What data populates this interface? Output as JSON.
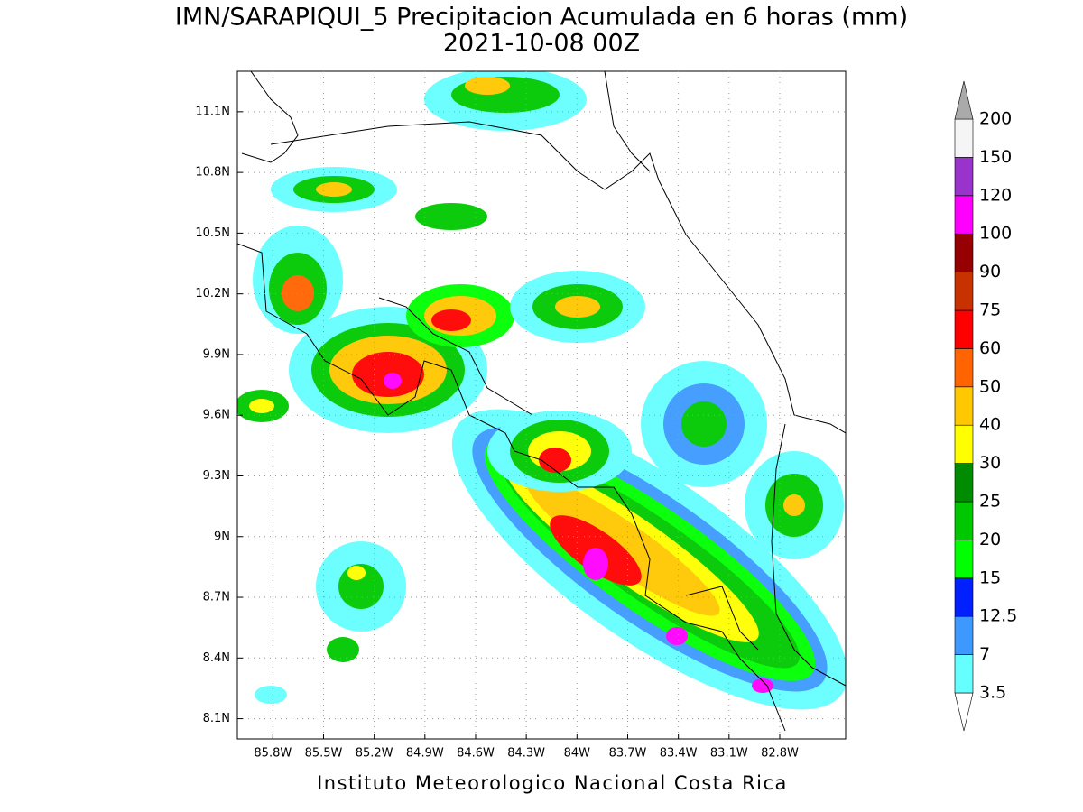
{
  "title": [
    "IMN/SARAPIQUI_5 Precipitacion Acumulada en 6 horas (mm)",
    "2021-10-08 00Z"
  ],
  "map": {
    "xlim": [
      -86.01,
      -82.41
    ],
    "ylim": [
      8.0,
      11.3
    ],
    "xticks": [
      {
        "value": -85.8,
        "label": "85.8W"
      },
      {
        "value": -85.5,
        "label": "85.5W"
      },
      {
        "value": -85.2,
        "label": "85.2W"
      },
      {
        "value": -84.9,
        "label": "84.9W"
      },
      {
        "value": -84.6,
        "label": "84.6W"
      },
      {
        "value": -84.3,
        "label": "84.3W"
      },
      {
        "value": -84.0,
        "label": "84W"
      },
      {
        "value": -83.7,
        "label": "83.7W"
      },
      {
        "value": -83.4,
        "label": "83.4W"
      },
      {
        "value": -83.1,
        "label": "83.1W"
      },
      {
        "value": -82.8,
        "label": "82.8W"
      }
    ],
    "yticks": [
      {
        "value": 8.1,
        "label": "8.1N"
      },
      {
        "value": 8.4,
        "label": "8.4N"
      },
      {
        "value": 8.7,
        "label": "8.7N"
      },
      {
        "value": 9.0,
        "label": "9N"
      },
      {
        "value": 9.3,
        "label": "9.3N"
      },
      {
        "value": 9.6,
        "label": "9.6N"
      },
      {
        "value": 9.9,
        "label": "9.9N"
      },
      {
        "value": 10.2,
        "label": "10.2N"
      },
      {
        "value": 10.5,
        "label": "10.5N"
      },
      {
        "value": 10.8,
        "label": "10.8N"
      },
      {
        "value": 11.1,
        "label": "11.1N"
      }
    ],
    "grid": true
  },
  "colorbar": {
    "levels": [
      3.5,
      7,
      12.5,
      15,
      20,
      25,
      30,
      40,
      50,
      60,
      75,
      90,
      100,
      120,
      150,
      200
    ],
    "colors": [
      "#ffffff",
      "#66ffff",
      "#3d99ff",
      "#0020ff",
      "#00ff00",
      "#00c800",
      "#008c00",
      "#ffff00",
      "#ffc800",
      "#ff6400",
      "#ff0000",
      "#c83200",
      "#960000",
      "#ff00ff",
      "#9933cc",
      "#f5f5f5",
      "#aaaaaa"
    ]
  },
  "footer": "Instituto Meteorologico Nacional Costa Rica"
}
